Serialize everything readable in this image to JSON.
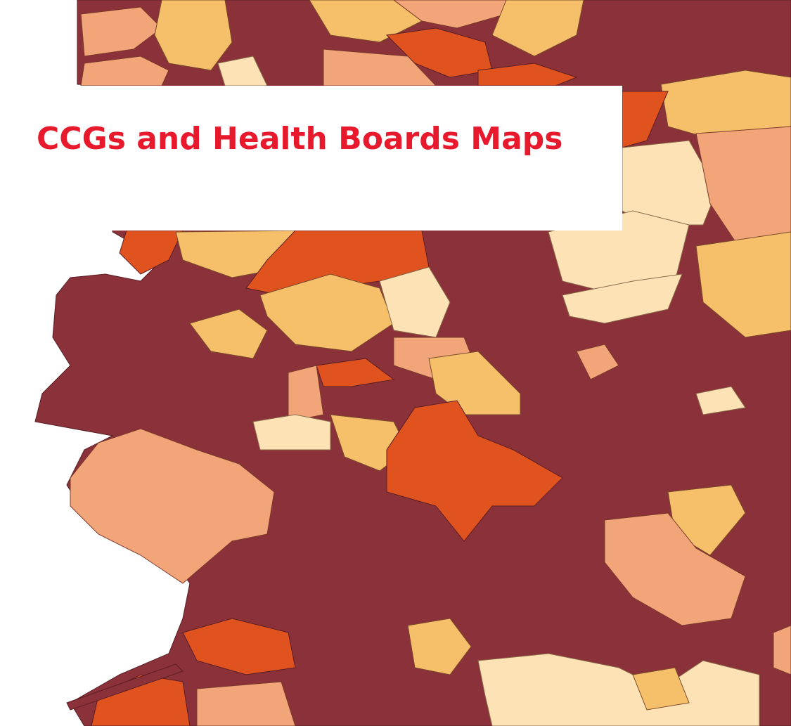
{
  "header": {
    "title": "CCGs and Health Boards Maps"
  }
}
